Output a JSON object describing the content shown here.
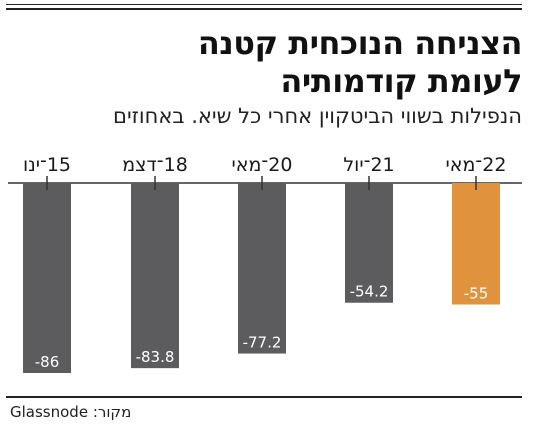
{
  "header": {
    "title_line_1": "הצניחה הנוכחית קטנה",
    "title_line_2": "לעומת קודמותיה",
    "subtitle": "הנפילות בשווי הביטקוין אחרי כל שיא. באחוזים"
  },
  "source": "Glassnode :מקור",
  "colors": {
    "bar": "#5c5c5e",
    "highlight": "#e0933c",
    "axis": "#333333"
  },
  "chart_data": {
    "type": "bar",
    "title": "הצניחה הנוכחית קטנה לעומת קודמותיה",
    "subtitle": "הנפילות בשווי הביטקוין אחרי כל שיא. באחוזים",
    "categories": [
      "15־ינו",
      "18־דצמ",
      "20־מאי",
      "21־יול",
      "22־מאי"
    ],
    "values": [
      -86,
      -83.8,
      -77.2,
      -54.2,
      -55
    ],
    "data_labels": [
      "-86",
      "-83.8",
      "-77.2",
      "-54.2",
      "-55"
    ],
    "highlight_index": 4,
    "ylim": [
      -90,
      0
    ],
    "grid": false,
    "legend": "none"
  }
}
